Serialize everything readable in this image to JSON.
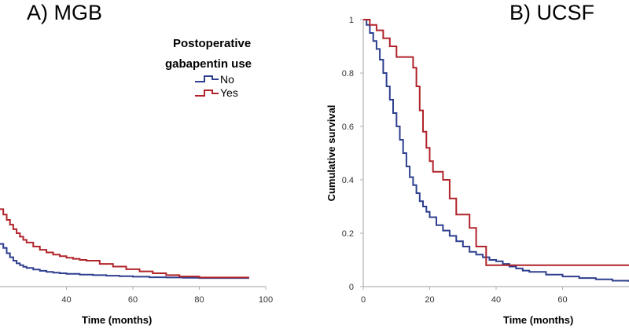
{
  "chart_data": [
    {
      "type": "line",
      "panel": "left",
      "title": "A) MGB",
      "xlabel": "Time (months)",
      "ylabel": "",
      "xlim": [
        20,
        100
      ],
      "ylim": [
        0,
        1
      ],
      "xticks": [
        "40",
        "60",
        "80",
        "100"
      ],
      "xtick_values": [
        40,
        60,
        80,
        100
      ],
      "grid": false,
      "legend": {
        "title_line1": "Postoperative",
        "title_line2": "gabapentin use",
        "entries": [
          "No",
          "Yes"
        ],
        "placement": "top-right"
      },
      "series": [
        {
          "name": "No",
          "color": "#2e3f8f",
          "x": [
            20,
            21,
            22,
            23,
            24,
            25,
            26,
            27,
            28,
            30,
            32,
            34,
            36,
            38,
            40,
            44,
            48,
            52,
            56,
            60,
            65,
            70,
            75,
            80,
            85,
            90,
            95
          ],
          "y": [
            0.16,
            0.145,
            0.125,
            0.11,
            0.097,
            0.087,
            0.08,
            0.074,
            0.07,
            0.064,
            0.059,
            0.055,
            0.052,
            0.05,
            0.048,
            0.045,
            0.043,
            0.041,
            0.039,
            0.037,
            0.035,
            0.034,
            0.033,
            0.032,
            0.032,
            0.032,
            0.032
          ]
        },
        {
          "name": "Yes",
          "color": "#b0232a",
          "x": [
            20,
            21,
            22,
            23,
            24,
            25,
            26,
            27,
            28,
            30,
            32,
            34,
            36,
            38,
            40,
            42,
            44,
            46,
            48,
            50,
            54,
            58,
            62,
            66,
            70,
            74,
            80,
            90,
            95
          ],
          "y": [
            0.29,
            0.27,
            0.25,
            0.232,
            0.215,
            0.2,
            0.187,
            0.175,
            0.165,
            0.15,
            0.138,
            0.128,
            0.12,
            0.114,
            0.108,
            0.104,
            0.1,
            0.097,
            0.097,
            0.085,
            0.075,
            0.065,
            0.057,
            0.05,
            0.043,
            0.038,
            0.034,
            0.034,
            0.034
          ]
        }
      ]
    },
    {
      "type": "line",
      "panel": "right",
      "title": "B) UCSF",
      "xlabel": "Time (months)",
      "ylabel": "Cumulative survival",
      "xlim": [
        0,
        80
      ],
      "ylim": [
        0,
        1
      ],
      "xticks": [
        "0",
        "20",
        "40",
        "60"
      ],
      "xtick_values": [
        0,
        20,
        40,
        60
      ],
      "yticks": [
        "0",
        "0.2",
        "0.4",
        "0.6",
        "0.8",
        "1"
      ],
      "ytick_values": [
        0,
        0.2,
        0.4,
        0.6,
        0.8,
        1
      ],
      "grid": false,
      "series": [
        {
          "name": "No",
          "color": "#2e3f8f",
          "x": [
            0,
            1,
            2,
            3,
            4,
            5,
            6,
            7,
            8,
            9,
            10,
            11,
            12,
            13,
            14,
            15,
            16,
            17,
            18,
            19,
            20,
            22,
            24,
            26,
            28,
            30,
            32,
            34,
            36,
            38,
            40,
            42,
            44,
            46,
            48,
            50,
            55,
            60,
            65,
            70,
            75,
            80
          ],
          "y": [
            1,
            0.98,
            0.95,
            0.92,
            0.89,
            0.85,
            0.8,
            0.75,
            0.7,
            0.65,
            0.6,
            0.55,
            0.5,
            0.45,
            0.41,
            0.38,
            0.35,
            0.32,
            0.3,
            0.28,
            0.26,
            0.23,
            0.21,
            0.19,
            0.17,
            0.15,
            0.13,
            0.12,
            0.11,
            0.1,
            0.095,
            0.085,
            0.075,
            0.068,
            0.06,
            0.055,
            0.045,
            0.038,
            0.032,
            0.027,
            0.022,
            0.018
          ]
        },
        {
          "name": "Yes",
          "color": "#b0232a",
          "x": [
            0,
            2,
            4,
            6,
            8,
            10,
            12,
            14,
            15,
            16,
            17,
            18,
            19,
            20,
            21,
            22,
            24,
            26,
            28,
            30,
            32,
            34,
            36,
            37,
            40,
            50,
            60,
            70,
            80
          ],
          "y": [
            1,
            0.98,
            0.96,
            0.93,
            0.9,
            0.86,
            0.86,
            0.86,
            0.82,
            0.75,
            0.66,
            0.58,
            0.52,
            0.47,
            0.43,
            0.43,
            0.4,
            0.33,
            0.27,
            0.27,
            0.22,
            0.15,
            0.15,
            0.08,
            0.08,
            0.08,
            0.08,
            0.08,
            0.08
          ]
        }
      ]
    }
  ]
}
